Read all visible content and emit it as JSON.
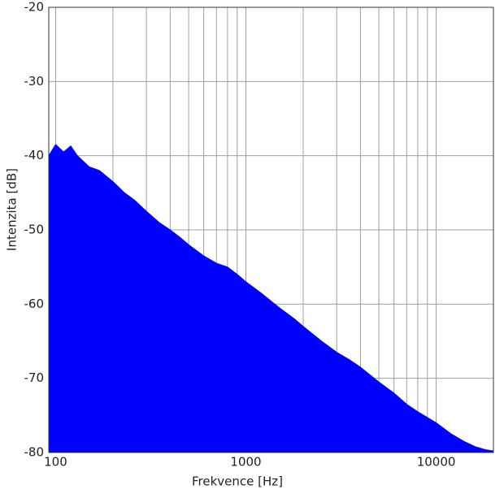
{
  "chart_data": {
    "type": "area",
    "x_label": "Frekvence [Hz]",
    "y_label": "Intenzita [dB]",
    "x": [
      92,
      100,
      110,
      120,
      130,
      150,
      170,
      200,
      230,
      260,
      300,
      350,
      400,
      450,
      500,
      600,
      700,
      800,
      900,
      1000,
      1200,
      1500,
      1800,
      2000,
      2500,
      3000,
      3500,
      4000,
      5000,
      6000,
      7000,
      8000,
      10000,
      12000,
      14000,
      16000,
      18000,
      20000
    ],
    "series": [
      {
        "color": "#0000ff",
        "values": [
          -40,
          -38.5,
          -39.5,
          -38.7,
          -40,
          -41.5,
          -42,
          -43.5,
          -45,
          -46,
          -47.5,
          -49,
          -50,
          -51,
          -52,
          -53.5,
          -54.5,
          -55,
          -56,
          -57,
          -58.5,
          -60.5,
          -62,
          -63,
          -65,
          -66.5,
          -67.5,
          -68.5,
          -70.5,
          -72,
          -73.5,
          -74.5,
          -76,
          -77.5,
          -78.5,
          -79.2,
          -79.6,
          -79.8
        ]
      }
    ],
    "x_log": true,
    "xlim": [
      92,
      20000
    ],
    "xticks": [
      100,
      1000,
      10000
    ],
    "x_minor_grid": [
      200,
      300,
      400,
      500,
      600,
      700,
      800,
      900,
      2000,
      3000,
      4000,
      5000,
      6000,
      7000,
      8000,
      9000,
      20000
    ],
    "ylim": [
      -80,
      -20
    ],
    "yticks": [
      -80,
      -70,
      -60,
      -50,
      -40,
      -30,
      -20
    ],
    "grid": true
  }
}
